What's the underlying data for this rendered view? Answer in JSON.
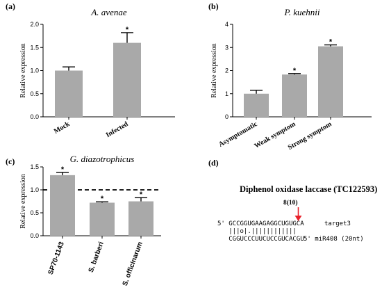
{
  "chart_data": [
    {
      "panel_label": "(a)",
      "type": "bar",
      "title": "A. avenae",
      "ylabel": "Relative expression",
      "categories": [
        "Mock",
        "Infected"
      ],
      "values": [
        1.0,
        1.6
      ],
      "errors": [
        0.08,
        0.22
      ],
      "significance": [
        "",
        "*"
      ],
      "ylim": [
        0,
        2.0
      ],
      "yticks": [
        "0.0",
        "0.5",
        "1.0",
        "1.5",
        "2.0"
      ],
      "grid": false
    },
    {
      "panel_label": "(b)",
      "type": "bar",
      "title": "P. kuehnii",
      "ylabel": "Relative expression",
      "categories": [
        "Asymptomatic",
        "Weak symptom",
        "Strong symptom"
      ],
      "values": [
        1.0,
        1.83,
        3.05
      ],
      "errors": [
        0.15,
        0.04,
        0.06
      ],
      "significance": [
        "",
        "*",
        "*"
      ],
      "ylim": [
        0,
        4
      ],
      "yticks": [
        "0",
        "1",
        "2",
        "3",
        "4"
      ],
      "grid": false
    },
    {
      "panel_label": "(c)",
      "type": "bar",
      "title": "G. diazotrophicus",
      "ylabel": "Relative expression",
      "categories": [
        "SP70-1143",
        "S. barberi",
        "S. officinarum"
      ],
      "values": [
        1.32,
        0.72,
        0.75
      ],
      "errors": [
        0.06,
        0.02,
        0.08
      ],
      "significance": [
        "*",
        "*",
        "*"
      ],
      "ylim": [
        0,
        1.5
      ],
      "yticks": [
        "0.0",
        "0.5",
        "1.0",
        "1.5"
      ],
      "reference_line": 1.0,
      "grid": false
    }
  ],
  "panel_d": {
    "panel_label": "(d)",
    "title": "Diphenol oxidase laccase (TC122593)",
    "cleavage_label": "8(10)",
    "target_seq": "5' GCCGGUGAAGAGGCUGUGCA",
    "target_name": "target3",
    "pairing": "   |||o|.||||||||||||",
    "mirna_seq": "   CGGUCCCUUCUCCGUCACGU",
    "mirna_name": "5' miR408 (20nt)",
    "arrow_color": "#e8202a"
  }
}
